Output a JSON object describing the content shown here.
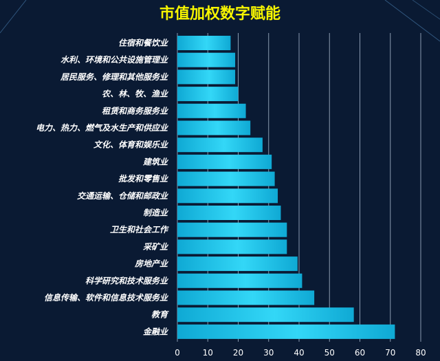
{
  "chart_data": {
    "type": "bar",
    "orientation": "horizontal",
    "title": "市值加权数字赋能",
    "categories": [
      "住宿和餐饮业",
      "水利、环境和公共设施管理业",
      "居民服务、修理和其他服务业",
      "农、林、牧、渔业",
      "租赁和商务服务业",
      "电力、热力、燃气及水生产和供应业",
      "文化、体育和娱乐业",
      "建筑业",
      "批发和零售业",
      "交通运输、仓储和邮政业",
      "制造业",
      "卫生和社会工作",
      "采矿业",
      "房地产业",
      "科学研究和技术服务业",
      "信息传输、软件和信息技术服务业",
      "教育",
      "金融业"
    ],
    "values": [
      17.5,
      19,
      19,
      20,
      22.5,
      24,
      28,
      31,
      32,
      33,
      34,
      36,
      36,
      39.5,
      41,
      45,
      58,
      71.5
    ],
    "xlim": [
      0,
      80
    ],
    "xticks": [
      0,
      10,
      20,
      30,
      40,
      50,
      60,
      70,
      80
    ],
    "grid": true,
    "legend": "none",
    "colors": {
      "background": "#0a1a33",
      "bar_dark": "#0fa9d4",
      "bar_light": "#33d7f7",
      "grid": "#8a9bb0",
      "title": "#f7f500",
      "text": "#ffffff"
    }
  }
}
